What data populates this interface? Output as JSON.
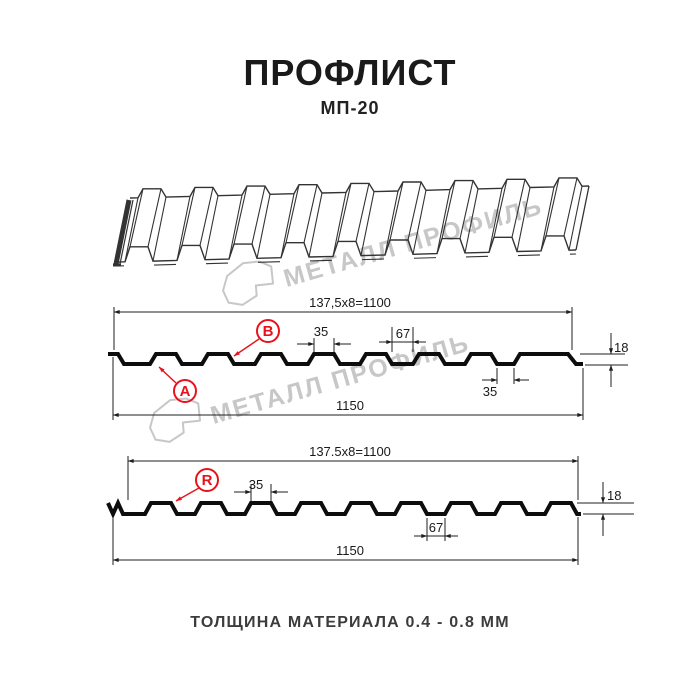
{
  "page": {
    "title": "ПРОФЛИСТ",
    "subtitle": "МП-20",
    "footer": "ТОЛЩИНА МАТЕРИАЛА 0.4 - 0.8 ММ"
  },
  "watermark": {
    "text": "МЕТАЛЛ ПРОФИЛЬ",
    "color": "#c7c7c7"
  },
  "colors": {
    "accent_red": "#e8111c",
    "line": "#1f1f1f",
    "profile_stroke": "#0d0d0d"
  },
  "sections": {
    "top": {
      "length_label": "137,5x8=1100",
      "width_label": "1150",
      "height_label": "18",
      "rib_top_label": "35",
      "valley_label": "67",
      "edge_valley_label": "35",
      "marker_a": "A",
      "marker_b": "B"
    },
    "bottom": {
      "length_label": "137.5x8=1100",
      "width_label": "1150",
      "height_label": "18",
      "rib_top_label": "35",
      "valley_label": "67",
      "marker_r": "R"
    }
  }
}
